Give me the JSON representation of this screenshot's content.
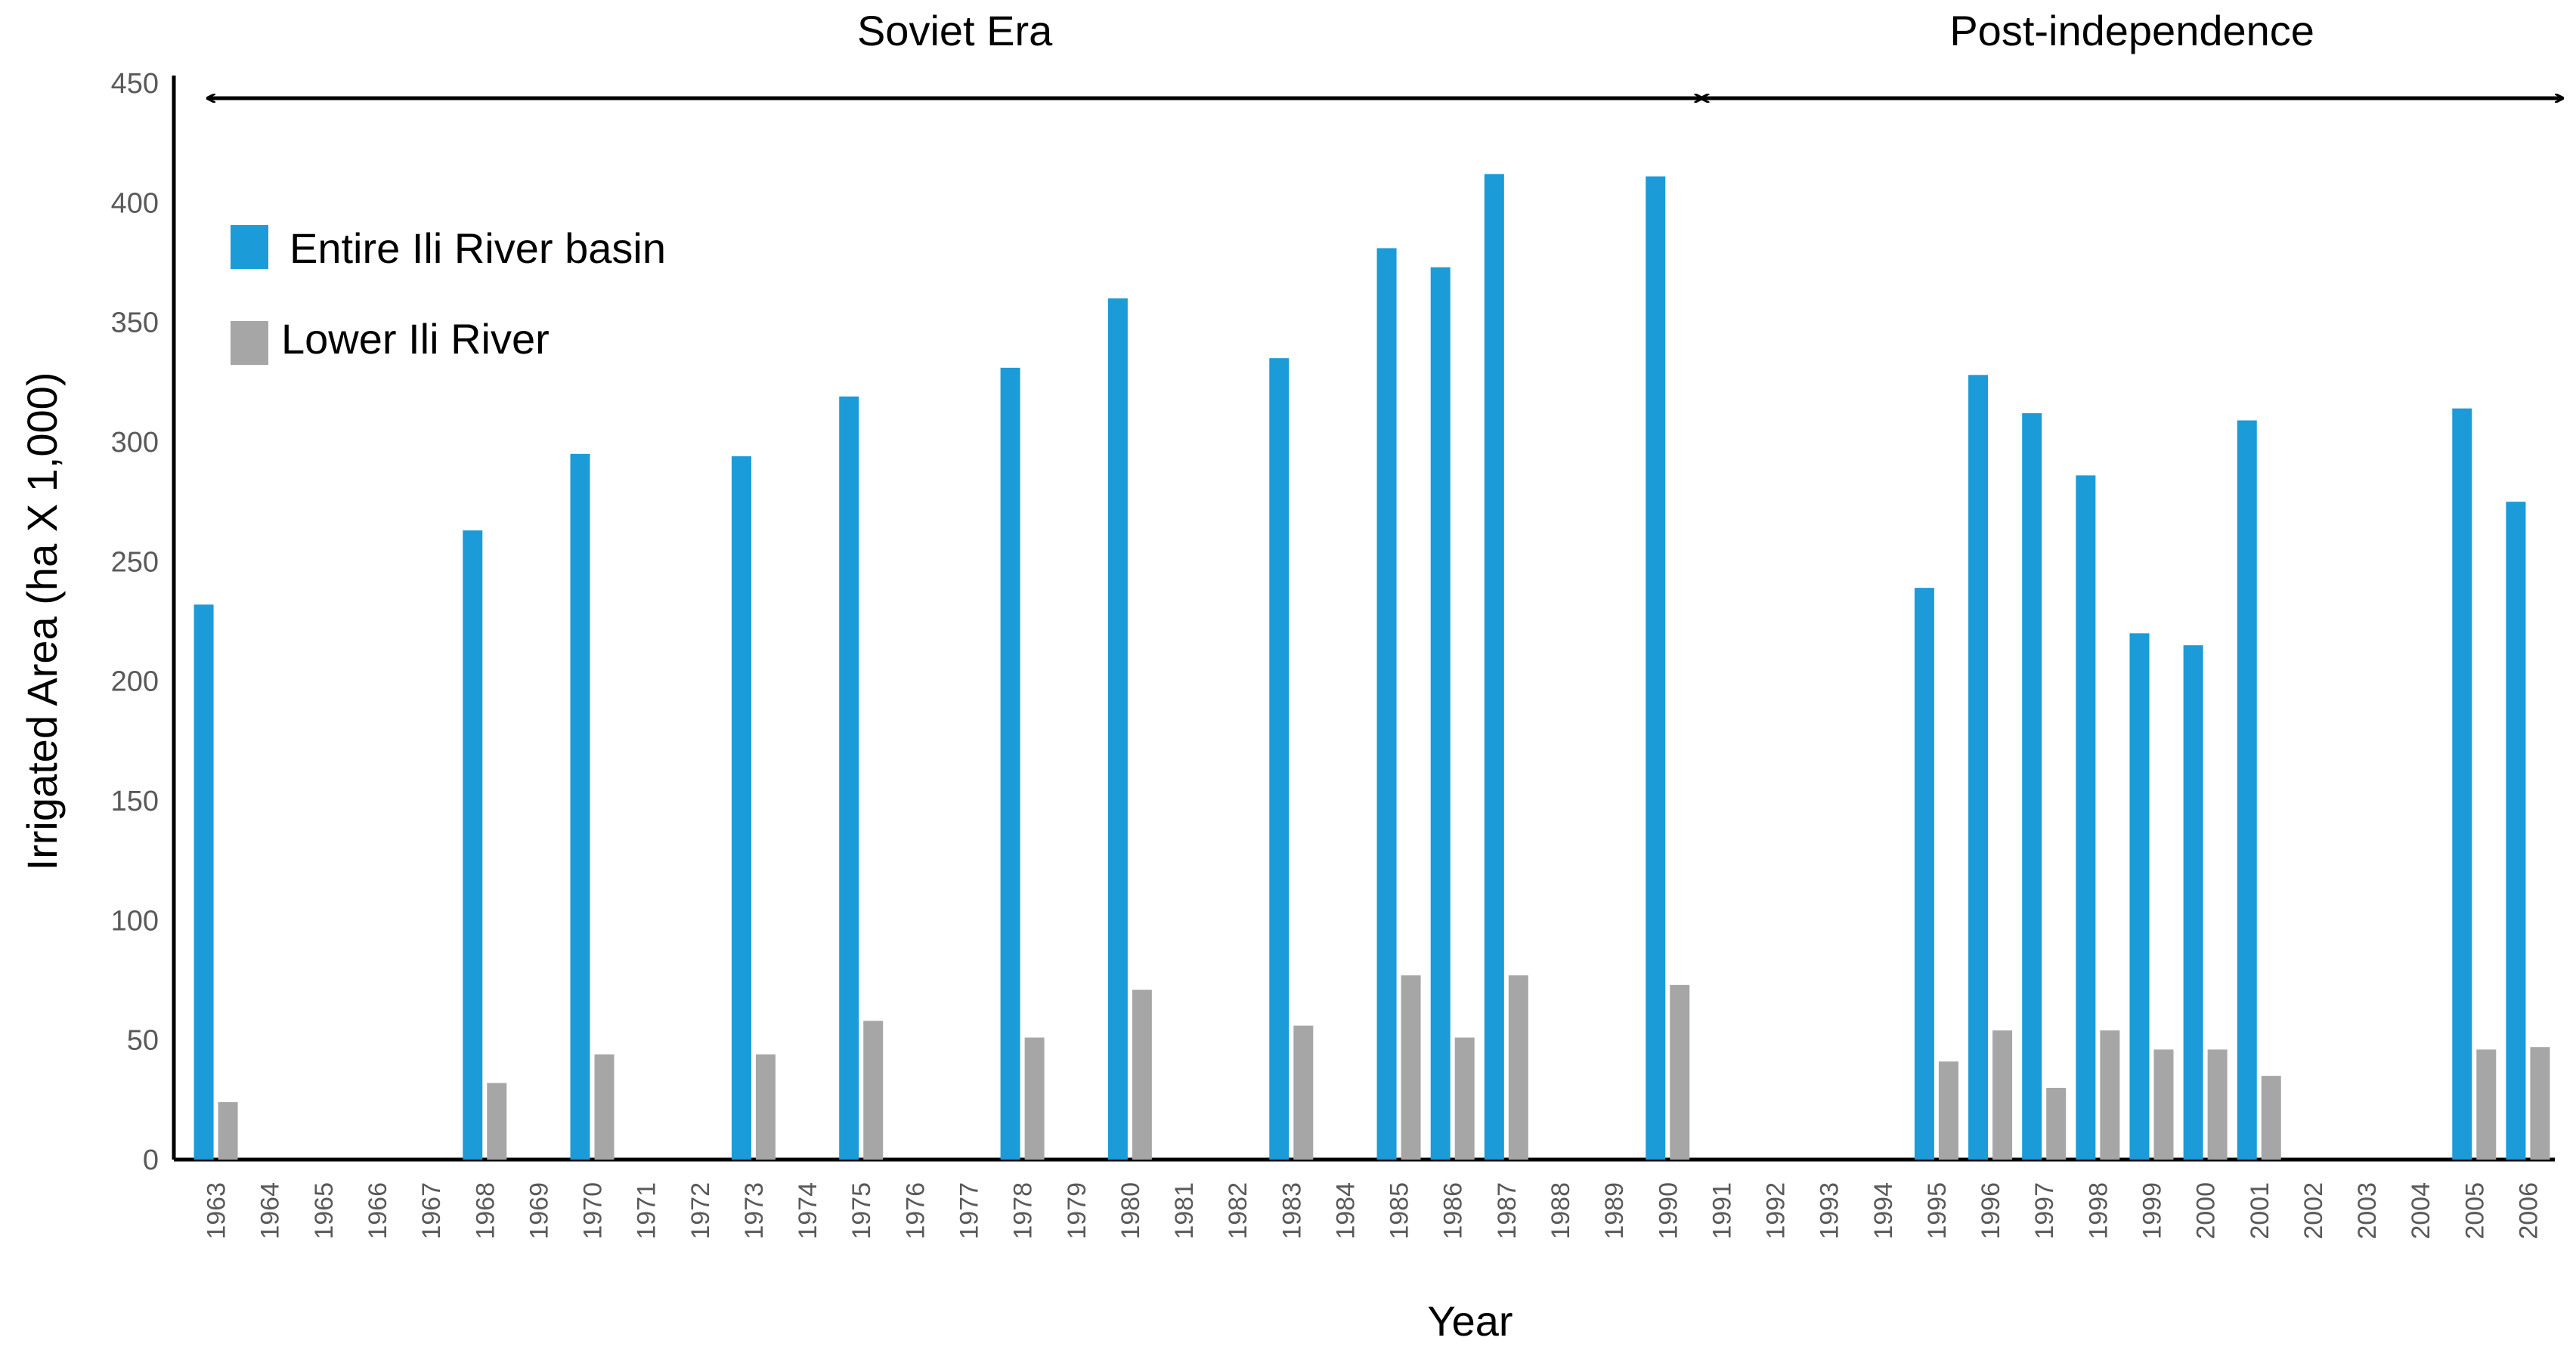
{
  "chart_data": {
    "type": "bar",
    "xlabel": "Year",
    "ylabel": "Irrigated Area (ha X 1,000)",
    "ylim": [
      0,
      450
    ],
    "yticks": [
      0,
      50,
      100,
      150,
      200,
      250,
      300,
      350,
      400,
      450
    ],
    "grid": false,
    "legend_position": "top-left",
    "categories": [
      "1963",
      "1964",
      "1965",
      "1966",
      "1967",
      "1968",
      "1969",
      "1970",
      "1971",
      "1972",
      "1973",
      "1974",
      "1975",
      "1976",
      "1977",
      "1978",
      "1979",
      "1980",
      "1981",
      "1982",
      "1983",
      "1984",
      "1985",
      "1986",
      "1987",
      "1988",
      "1989",
      "1990",
      "1991",
      "1992",
      "1993",
      "1994",
      "1995",
      "1996",
      "1997",
      "1998",
      "1999",
      "2000",
      "2001",
      "2002",
      "2003",
      "2004",
      "2005",
      "2006"
    ],
    "series": [
      {
        "name": "Entire Ili River basin",
        "color": "#1B9BD8",
        "values": [
          232,
          null,
          null,
          null,
          null,
          263,
          null,
          295,
          null,
          null,
          294,
          null,
          319,
          null,
          null,
          331,
          null,
          360,
          null,
          null,
          335,
          null,
          381,
          373,
          412,
          null,
          null,
          411,
          null,
          null,
          null,
          null,
          239,
          328,
          312,
          286,
          220,
          215,
          309,
          null,
          null,
          null,
          314,
          275
        ]
      },
      {
        "name": "Lower Ili River",
        "color": "#A6A6A6",
        "values": [
          24,
          null,
          null,
          null,
          null,
          32,
          null,
          44,
          null,
          null,
          44,
          null,
          58,
          null,
          null,
          51,
          null,
          71,
          null,
          null,
          56,
          null,
          77,
          51,
          77,
          null,
          null,
          73,
          null,
          null,
          null,
          null,
          41,
          54,
          30,
          54,
          46,
          46,
          35,
          null,
          null,
          null,
          46,
          47
        ]
      }
    ],
    "periods": [
      {
        "label": "Soviet Era",
        "start": "1963",
        "end": "1990"
      },
      {
        "label": "Post-independence",
        "start": "1990",
        "end": "2006"
      }
    ]
  }
}
